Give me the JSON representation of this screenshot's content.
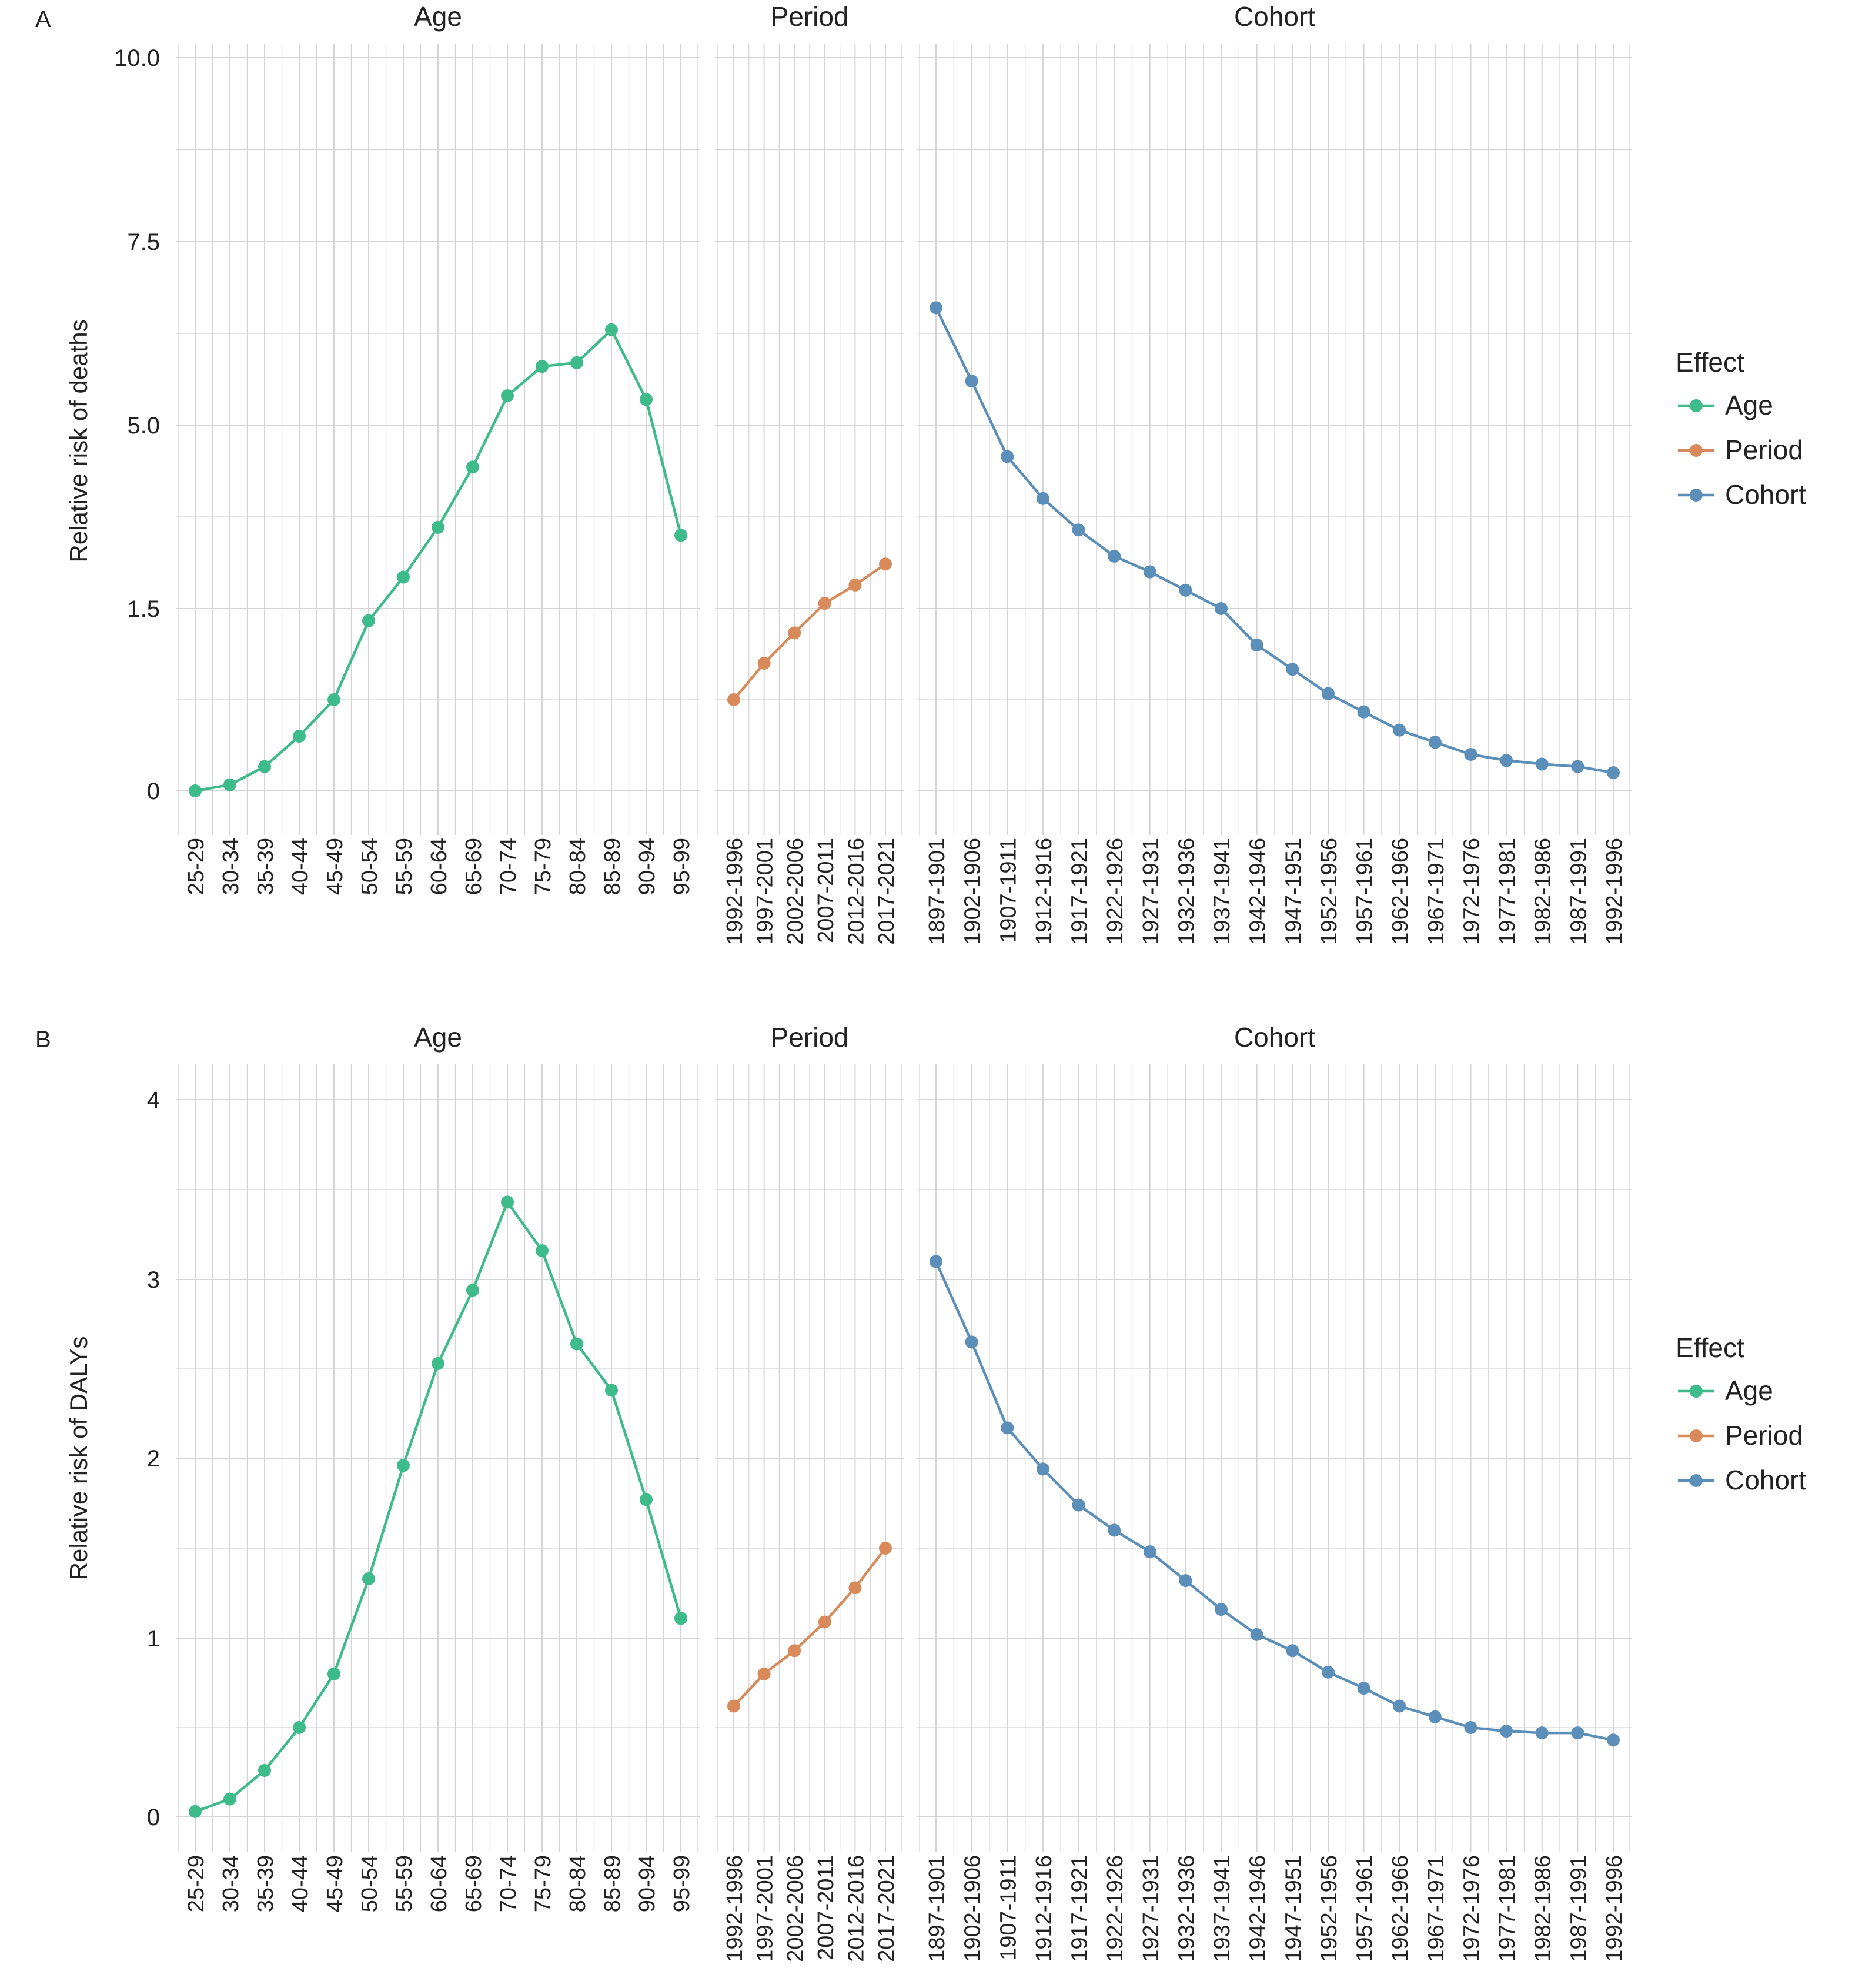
{
  "chart_data": [
    {
      "type": "line",
      "panel_label": "A",
      "ylabel": "Relative risk of deaths",
      "yticks": [
        "0",
        "1.5",
        "5.0",
        "7.5",
        "10.0"
      ],
      "facets": [
        {
          "title": "Age",
          "categories": [
            "25-29",
            "30-34",
            "35-39",
            "40-44",
            "45-49",
            "50-54",
            "55-59",
            "60-64",
            "65-69",
            "70-74",
            "75-79",
            "80-84",
            "85-89",
            "90-94",
            "95-99"
          ],
          "series": [
            {
              "name": "Age",
              "values": [
                0.0,
                0.05,
                0.2,
                0.45,
                0.75,
                1.4,
                2.1,
                3.05,
                4.2,
                5.4,
                5.8,
                5.85,
                6.3,
                5.35,
                2.9
              ]
            }
          ]
        },
        {
          "title": "Period",
          "categories": [
            "1992-1996",
            "1997-2001",
            "2002-2006",
            "2007-2011",
            "2012-2016",
            "2017-2021"
          ],
          "series": [
            {
              "name": "Period",
              "values": [
                0.75,
                1.05,
                1.3,
                1.6,
                1.95,
                2.35
              ]
            }
          ]
        },
        {
          "title": "Cohort",
          "categories": [
            "1897-1901",
            "1902-1906",
            "1907-1911",
            "1912-1916",
            "1917-1921",
            "1922-1926",
            "1927-1931",
            "1932-1936",
            "1937-1941",
            "1942-1946",
            "1947-1951",
            "1952-1956",
            "1957-1961",
            "1962-1966",
            "1967-1971",
            "1972-1976",
            "1977-1981",
            "1982-1986",
            "1987-1991",
            "1992-1996"
          ],
          "series": [
            {
              "name": "Cohort",
              "values": [
                6.6,
                5.6,
                4.4,
                3.6,
                3.0,
                2.5,
                2.2,
                1.85,
                1.5,
                1.2,
                1.0,
                0.8,
                0.65,
                0.5,
                0.4,
                0.3,
                0.25,
                0.22,
                0.2,
                0.15
              ]
            }
          ]
        }
      ],
      "legend": {
        "title": "Effect",
        "entries": [
          "Age",
          "Period",
          "Cohort"
        ],
        "placement": "right"
      }
    },
    {
      "type": "line",
      "panel_label": "B",
      "ylabel": "Relative risk of DALYs",
      "yticks": [
        "0",
        "1",
        "2",
        "3",
        "4"
      ],
      "facets": [
        {
          "title": "Age",
          "categories": [
            "25-29",
            "30-34",
            "35-39",
            "40-44",
            "45-49",
            "50-54",
            "55-59",
            "60-64",
            "65-69",
            "70-74",
            "75-79",
            "80-84",
            "85-89",
            "90-94",
            "95-99"
          ],
          "series": [
            {
              "name": "Age",
              "values": [
                0.03,
                0.1,
                0.26,
                0.5,
                0.8,
                1.33,
                1.96,
                2.53,
                2.94,
                3.43,
                3.16,
                2.64,
                2.38,
                1.77,
                1.11
              ]
            }
          ]
        },
        {
          "title": "Period",
          "categories": [
            "1992-1996",
            "1997-2001",
            "2002-2006",
            "2007-2011",
            "2012-2016",
            "2017-2021"
          ],
          "series": [
            {
              "name": "Period",
              "values": [
                0.62,
                0.8,
                0.93,
                1.09,
                1.28,
                1.5
              ]
            }
          ]
        },
        {
          "title": "Cohort",
          "categories": [
            "1897-1901",
            "1902-1906",
            "1907-1911",
            "1912-1916",
            "1917-1921",
            "1922-1926",
            "1927-1931",
            "1932-1936",
            "1937-1941",
            "1942-1946",
            "1947-1951",
            "1952-1956",
            "1957-1961",
            "1962-1966",
            "1967-1971",
            "1972-1976",
            "1977-1981",
            "1982-1986",
            "1987-1991",
            "1992-1996"
          ],
          "series": [
            {
              "name": "Cohort",
              "values": [
                3.1,
                2.65,
                2.17,
                1.94,
                1.74,
                1.6,
                1.48,
                1.32,
                1.16,
                1.02,
                0.93,
                0.81,
                0.72,
                0.62,
                0.56,
                0.5,
                0.48,
                0.47,
                0.47,
                0.43
              ]
            }
          ]
        }
      ],
      "legend": {
        "title": "Effect",
        "entries": [
          "Age",
          "Period",
          "Cohort"
        ],
        "placement": "right"
      }
    }
  ],
  "colors": {
    "Age": "#3dbb8a",
    "Period": "#d98a5a",
    "Cohort": "#5b8fb9",
    "grid": "#d4d4d4",
    "text": "#222222"
  }
}
